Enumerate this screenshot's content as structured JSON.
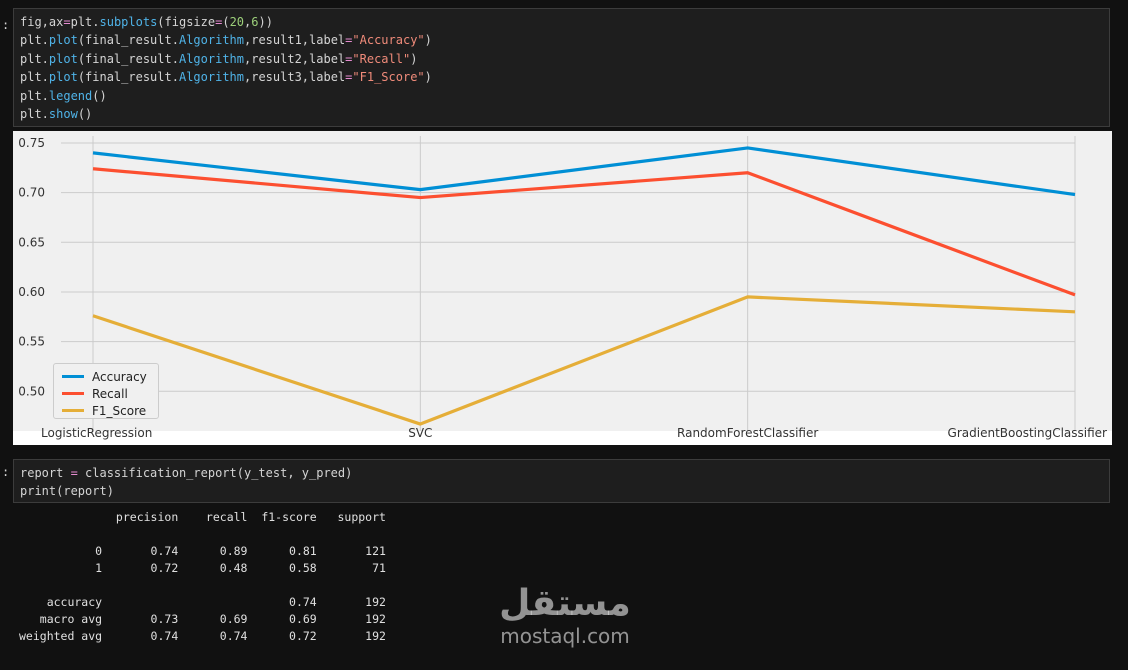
{
  "prompt_marker": ":",
  "code_cell_1": {
    "lines": [
      [
        {
          "t": "fig,ax",
          "c": "txt"
        },
        {
          "t": "=",
          "c": "op"
        },
        {
          "t": "plt.",
          "c": "txt"
        },
        {
          "t": "subplots",
          "c": "fn"
        },
        {
          "t": "(figsize",
          "c": "txt"
        },
        {
          "t": "=",
          "c": "op"
        },
        {
          "t": "(",
          "c": "txt"
        },
        {
          "t": "20",
          "c": "num"
        },
        {
          "t": ",",
          "c": "txt"
        },
        {
          "t": "6",
          "c": "num"
        },
        {
          "t": "))",
          "c": "txt"
        }
      ],
      [
        {
          "t": "plt.",
          "c": "txt"
        },
        {
          "t": "plot",
          "c": "fn"
        },
        {
          "t": "(final_result.",
          "c": "txt"
        },
        {
          "t": "Algorithm",
          "c": "fn"
        },
        {
          "t": ",result1,label",
          "c": "txt"
        },
        {
          "t": "=",
          "c": "op"
        },
        {
          "t": "\"Accuracy\"",
          "c": "str"
        },
        {
          "t": ")",
          "c": "txt"
        }
      ],
      [
        {
          "t": "plt.",
          "c": "txt"
        },
        {
          "t": "plot",
          "c": "fn"
        },
        {
          "t": "(final_result.",
          "c": "txt"
        },
        {
          "t": "Algorithm",
          "c": "fn"
        },
        {
          "t": ",result2,label",
          "c": "txt"
        },
        {
          "t": "=",
          "c": "op"
        },
        {
          "t": "\"Recall\"",
          "c": "str"
        },
        {
          "t": ")",
          "c": "txt"
        }
      ],
      [
        {
          "t": "plt.",
          "c": "txt"
        },
        {
          "t": "plot",
          "c": "fn"
        },
        {
          "t": "(final_result.",
          "c": "txt"
        },
        {
          "t": "Algorithm",
          "c": "fn"
        },
        {
          "t": ",result3,label",
          "c": "txt"
        },
        {
          "t": "=",
          "c": "op"
        },
        {
          "t": "\"F1_Score\"",
          "c": "str"
        },
        {
          "t": ")",
          "c": "txt"
        }
      ],
      [
        {
          "t": "plt.",
          "c": "txt"
        },
        {
          "t": "legend",
          "c": "fn"
        },
        {
          "t": "()",
          "c": "txt"
        }
      ],
      [
        {
          "t": "plt.",
          "c": "txt"
        },
        {
          "t": "show",
          "c": "fn"
        },
        {
          "t": "()",
          "c": "txt"
        }
      ]
    ]
  },
  "code_cell_2": {
    "lines": [
      [
        {
          "t": "report ",
          "c": "txt"
        },
        {
          "t": "=",
          "c": "op"
        },
        {
          "t": " classification_report(y_test, y_pred)",
          "c": "txt"
        }
      ],
      [
        {
          "t": "print(report)",
          "c": "txt"
        }
      ]
    ]
  },
  "colors": {
    "accuracy": "#008fd5",
    "recall": "#fc4f30",
    "f1_score": "#e5ae38",
    "plot_bg": "#f0f0f0",
    "grid": "#cbcbcb"
  },
  "chart_data": {
    "type": "line",
    "categories": [
      "LogisticRegression",
      "SVC",
      "RandomForestClassifier",
      "GradientBoostingClassifier"
    ],
    "series": [
      {
        "name": "Accuracy",
        "values": [
          0.74,
          0.703,
          0.745,
          0.698
        ]
      },
      {
        "name": "Recall",
        "values": [
          0.724,
          0.695,
          0.72,
          0.597
        ]
      },
      {
        "name": "F1_Score",
        "values": [
          0.576,
          0.467,
          0.595,
          0.58
        ]
      }
    ],
    "yticks": [
      "0.50",
      "0.55",
      "0.60",
      "0.65",
      "0.70",
      "0.75"
    ],
    "ylim": [
      0.46,
      0.757
    ],
    "grid": true,
    "legend_position": "lower-left",
    "style": "fivethirtyeight"
  },
  "report": {
    "header": "              precision    recall  f1-score   support",
    "rows": [
      "",
      "           0       0.74      0.89      0.81       121",
      "           1       0.72      0.48      0.58        71",
      "",
      "    accuracy                           0.74       192",
      "   macro avg       0.73      0.69      0.69       192",
      "weighted avg       0.74      0.74      0.72       192"
    ]
  },
  "watermark": {
    "arabic": "مستقل",
    "latin": "mostaql.com"
  }
}
